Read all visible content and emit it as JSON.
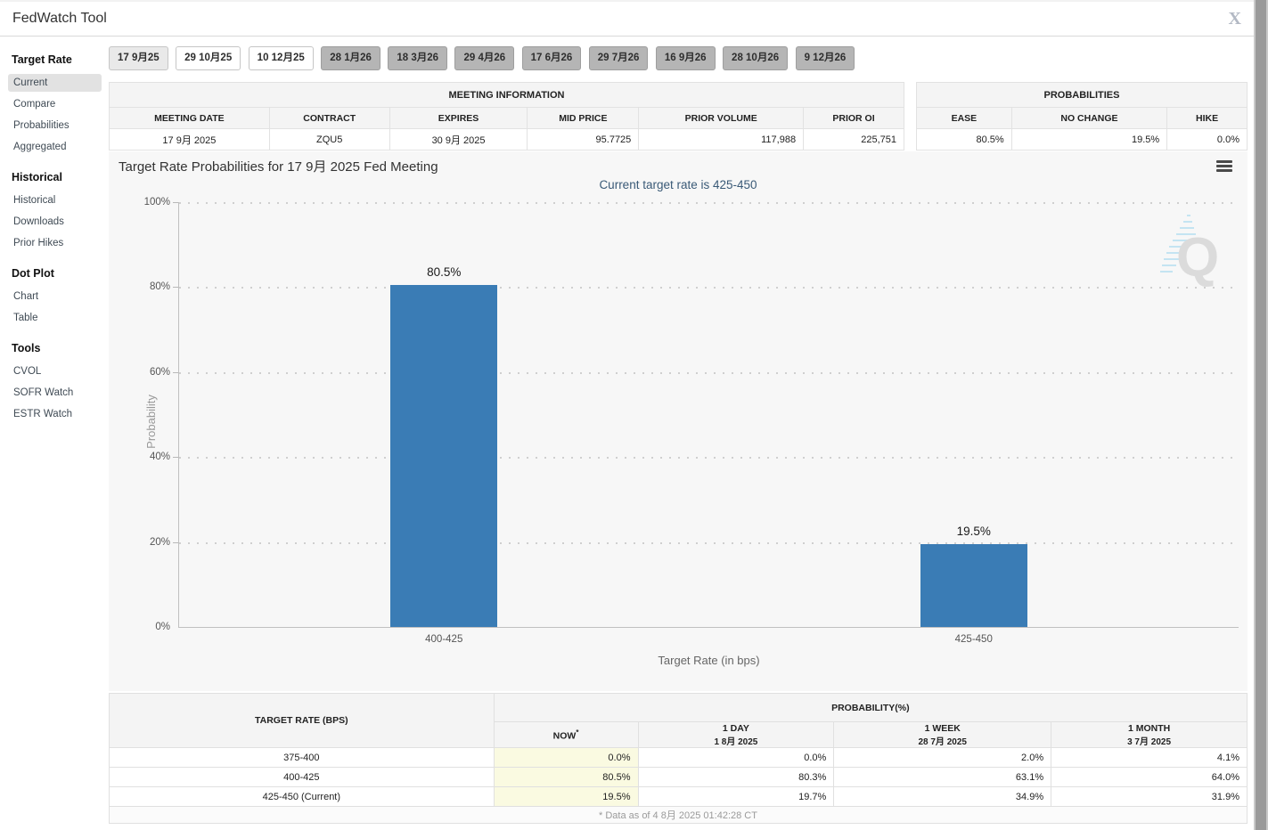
{
  "header": {
    "title": "FedWatch Tool",
    "close_label": "X"
  },
  "sidebar": {
    "sections": [
      {
        "heading": "Target Rate",
        "items": [
          {
            "label": "Current"
          },
          {
            "label": "Compare"
          },
          {
            "label": "Probabilities"
          },
          {
            "label": "Aggregated"
          }
        ]
      },
      {
        "heading": "Historical",
        "items": [
          {
            "label": "Historical"
          },
          {
            "label": "Downloads"
          },
          {
            "label": "Prior Hikes"
          }
        ]
      },
      {
        "heading": "Dot Plot",
        "items": [
          {
            "label": "Chart"
          },
          {
            "label": "Table"
          }
        ]
      },
      {
        "heading": "Tools",
        "items": [
          {
            "label": "CVOL"
          },
          {
            "label": "SOFR Watch"
          },
          {
            "label": "ESTR Watch"
          }
        ]
      }
    ]
  },
  "meeting_tabs": [
    {
      "label": "17 9月25",
      "state": "selected"
    },
    {
      "label": "29 10月25",
      "state": "light"
    },
    {
      "label": "10 12月25",
      "state": "light"
    },
    {
      "label": "28 1月26",
      "state": "dark"
    },
    {
      "label": "18 3月26",
      "state": "dark"
    },
    {
      "label": "29 4月26",
      "state": "dark"
    },
    {
      "label": "17 6月26",
      "state": "dark"
    },
    {
      "label": "29 7月26",
      "state": "dark"
    },
    {
      "label": "16 9月26",
      "state": "dark"
    },
    {
      "label": "28 10月26",
      "state": "dark"
    },
    {
      "label": "9 12月26",
      "state": "dark"
    }
  ],
  "meeting_info": {
    "title": "MEETING INFORMATION",
    "columns": [
      "MEETING DATE",
      "CONTRACT",
      "EXPIRES",
      "MID PRICE",
      "PRIOR VOLUME",
      "PRIOR OI"
    ],
    "values": [
      "17 9月 2025",
      "ZQU5",
      "30 9月 2025",
      "95.7725",
      "117,988",
      "225,751"
    ]
  },
  "probabilities_summary": {
    "title": "PROBABILITIES",
    "columns": [
      "EASE",
      "NO CHANGE",
      "HIKE"
    ],
    "values": [
      "80.5%",
      "19.5%",
      "0.0%"
    ]
  },
  "chart_data": {
    "type": "bar",
    "title": "Target Rate Probabilities for 17 9月 2025 Fed Meeting",
    "subtitle": "Current target rate is 425-450",
    "categories": [
      "400-425",
      "425-450"
    ],
    "values": [
      80.5,
      19.5
    ],
    "value_labels": [
      "80.5%",
      "19.5%"
    ],
    "xlabel": "Target Rate (in bps)",
    "ylabel": "Probability",
    "ylim": [
      0,
      100
    ],
    "yticks": [
      "0%",
      "20%",
      "40%",
      "60%",
      "80%",
      "100%"
    ],
    "bar_color": "#3a7cb5",
    "grid": "dotted horizontal at 20% steps",
    "legend": "none"
  },
  "history_table": {
    "col1_header": "TARGET RATE (BPS)",
    "group_header": "PROBABILITY(%)",
    "subheaders": [
      {
        "line1": "NOW",
        "asterisk": "*",
        "line2": ""
      },
      {
        "line1": "1 DAY",
        "line2": "1 8月 2025"
      },
      {
        "line1": "1 WEEK",
        "line2": "28 7月 2025"
      },
      {
        "line1": "1 MONTH",
        "line2": "3 7月 2025"
      }
    ],
    "rows": [
      {
        "rate": "375-400",
        "now": "0.0%",
        "day": "0.0%",
        "week": "2.0%",
        "month": "4.1%"
      },
      {
        "rate": "400-425",
        "now": "80.5%",
        "day": "80.3%",
        "week": "63.1%",
        "month": "64.0%"
      },
      {
        "rate": "425-450 (Current)",
        "now": "19.5%",
        "day": "19.7%",
        "week": "34.9%",
        "month": "31.9%"
      }
    ],
    "footnote": "* Data as of 4 8月 2025 01:42:28 CT"
  },
  "colors": {
    "bar_blue": "#3a7cb5",
    "subtitle_navy": "#3a5a77",
    "now_column_yellow": "#fafae1",
    "selected_tab_gray": "#e9e9e9",
    "disabled_tab_gray": "#b5b5b5",
    "panel_gray": "#f7f7f7"
  }
}
